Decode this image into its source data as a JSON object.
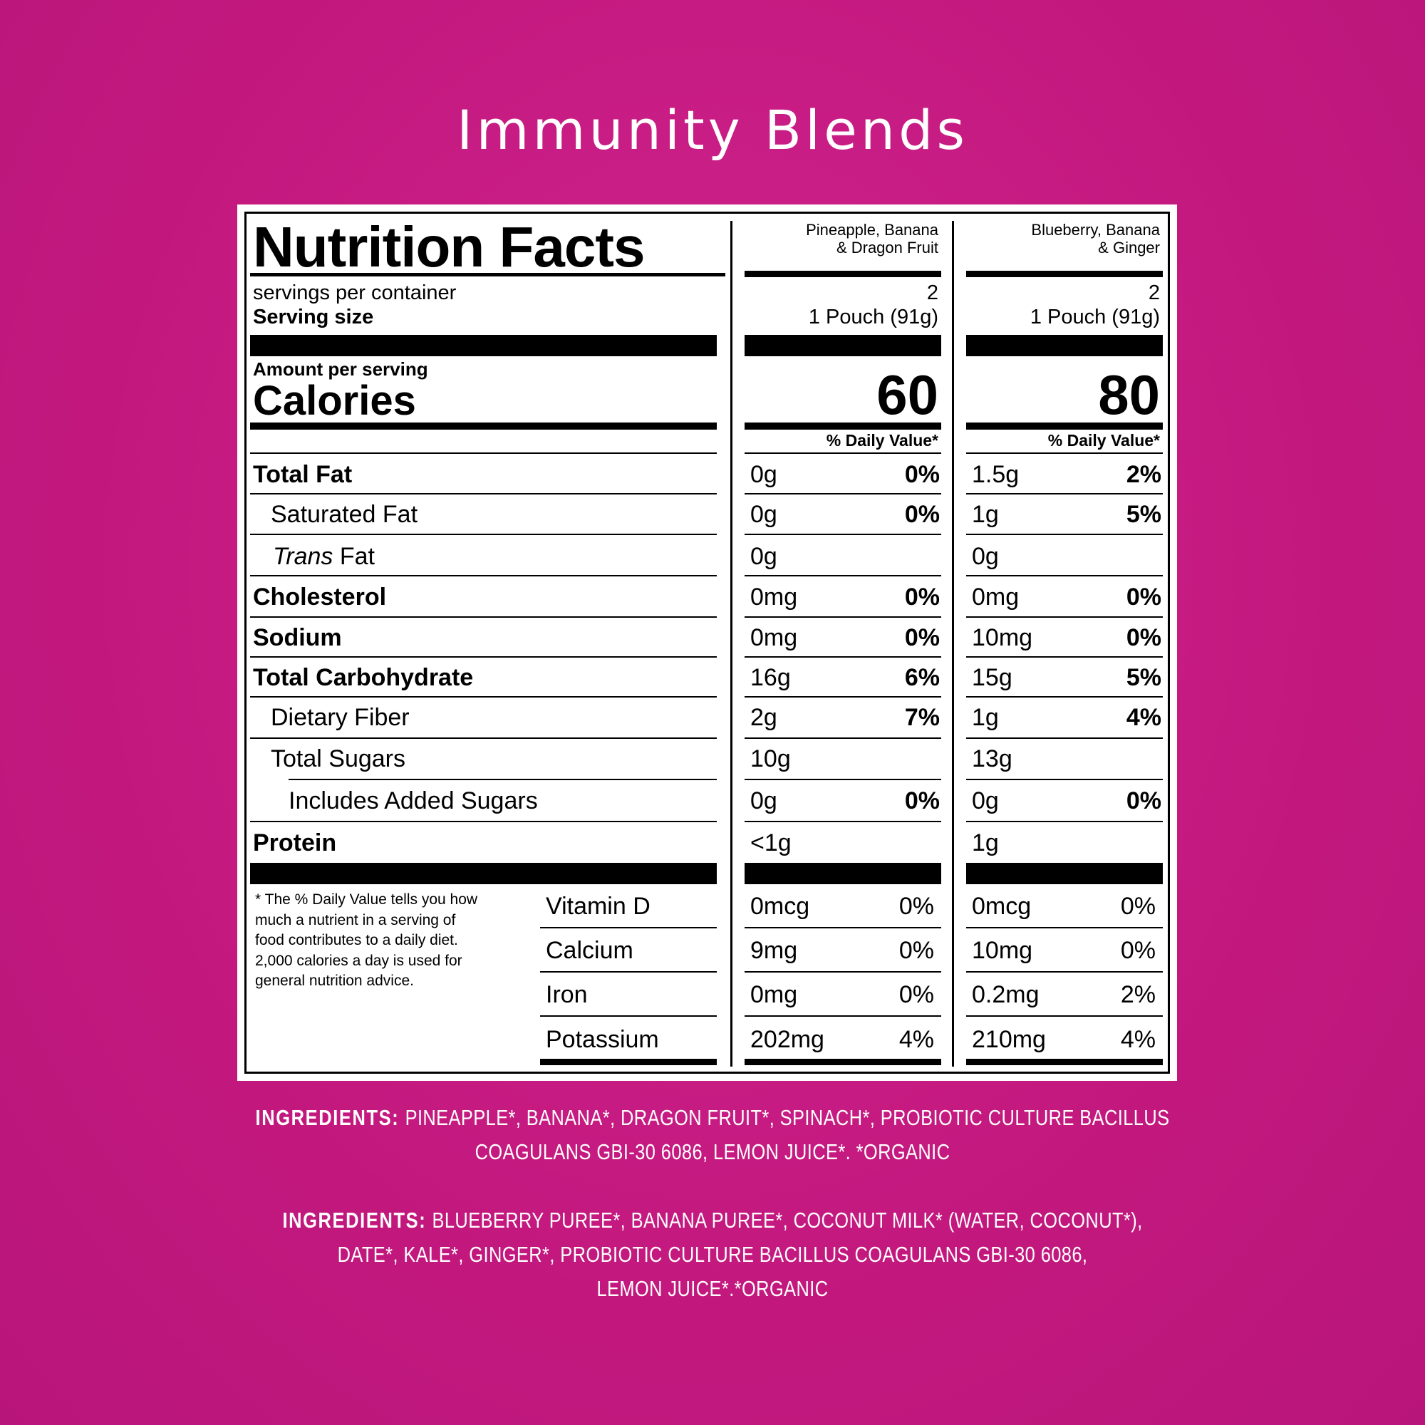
{
  "page": {
    "title": "Immunity Blends"
  },
  "label": {
    "heading": "Nutrition Facts",
    "servings_label": "servings per container",
    "serving_size_label": "Serving size",
    "amount_per_serving": "Amount per serving",
    "calories_label": "Calories",
    "dv_header": "% Daily Value*",
    "footnote": [
      "* The % Daily Value tells you how",
      "much a nutrient in a serving of",
      "food contributes to a daily diet.",
      "2,000 calories a day is used for",
      "general nutrition advice."
    ],
    "nutrients": [
      "Total Fat",
      "Saturated Fat",
      "Trans",
      "Fat",
      "Cholesterol",
      "Sodium",
      "Total Carbohydrate",
      "Dietary Fiber",
      "Total Sugars",
      "Includes Added Sugars",
      "Protein"
    ],
    "micros": [
      "Vitamin D",
      "Calcium",
      "Iron",
      "Potassium"
    ]
  },
  "products": [
    {
      "name_line1": "Pineapple, Banana",
      "name_line2": "& Dragon Fruit",
      "servings": "2",
      "serving_size": "1 Pouch (91g)",
      "calories": "60",
      "rows": [
        {
          "amt": "0g",
          "dv": "0%"
        },
        {
          "amt": "0g",
          "dv": "0%"
        },
        {
          "amt": "0g",
          "dv": ""
        },
        {
          "amt": "0mg",
          "dv": "0%"
        },
        {
          "amt": "0mg",
          "dv": "0%"
        },
        {
          "amt": "16g",
          "dv": "6%"
        },
        {
          "amt": "2g",
          "dv": "7%"
        },
        {
          "amt": "10g",
          "dv": ""
        },
        {
          "amt": "0g",
          "dv": "0%"
        },
        {
          "amt": "<1g",
          "dv": ""
        }
      ],
      "micros": [
        {
          "amt": "0mcg",
          "dv": "0%"
        },
        {
          "amt": "9mg",
          "dv": "0%"
        },
        {
          "amt": "0mg",
          "dv": "0%"
        },
        {
          "amt": "202mg",
          "dv": "4%"
        }
      ]
    },
    {
      "name_line1": "Blueberry, Banana",
      "name_line2": "& Ginger",
      "servings": "2",
      "serving_size": "1 Pouch (91g)",
      "calories": "80",
      "rows": [
        {
          "amt": "1.5g",
          "dv": "2%"
        },
        {
          "amt": "1g",
          "dv": "5%"
        },
        {
          "amt": "0g",
          "dv": ""
        },
        {
          "amt": "0mg",
          "dv": "0%"
        },
        {
          "amt": "10mg",
          "dv": "0%"
        },
        {
          "amt": "15g",
          "dv": "5%"
        },
        {
          "amt": "1g",
          "dv": "4%"
        },
        {
          "amt": "13g",
          "dv": ""
        },
        {
          "amt": "0g",
          "dv": "0%"
        },
        {
          "amt": "1g",
          "dv": ""
        }
      ],
      "micros": [
        {
          "amt": "0mcg",
          "dv": "0%"
        },
        {
          "amt": "10mg",
          "dv": "0%"
        },
        {
          "amt": "0.2mg",
          "dv": "2%"
        },
        {
          "amt": "210mg",
          "dv": "4%"
        }
      ]
    }
  ],
  "ingredients": [
    {
      "label": "INGREDIENTS:",
      "line1": "PINEAPPLE*, BANANA*, DRAGON FRUIT*, SPINACH*, PROBIOTIC CULTURE BACILLUS",
      "line2": "COAGULANS GBI-30 6086, LEMON JUICE*. *ORGANIC"
    },
    {
      "label": "INGREDIENTS:",
      "line1": "BLUEBERRY PUREE*, BANANA PUREE*, COCONUT MILK* (WATER, COCONUT*),",
      "line2": "DATE*, KALE*, GINGER*, PROBIOTIC CULTURE BACILLUS COAGULANS GBI-30 6086,",
      "line3": "LEMON JUICE*.*ORGANIC"
    }
  ]
}
